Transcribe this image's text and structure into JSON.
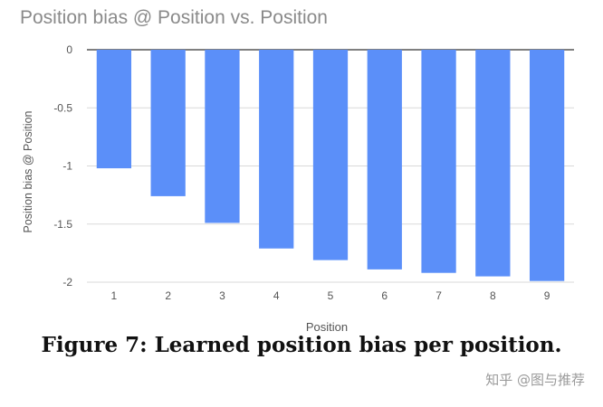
{
  "chart_data": {
    "type": "bar",
    "title": "Position bias @ Position vs. Position",
    "xlabel": "Position",
    "ylabel": "Position bias @ Position",
    "categories": [
      "1",
      "2",
      "3",
      "4",
      "5",
      "6",
      "7",
      "8",
      "9"
    ],
    "values": [
      -1.02,
      -1.26,
      -1.49,
      -1.71,
      -1.81,
      -1.89,
      -1.92,
      -1.95,
      -1.99
    ],
    "ylim": [
      -2,
      0
    ],
    "yticks": [
      "0",
      "-0.5",
      "-1",
      "-1.5",
      "-2"
    ],
    "grid": true,
    "bar_color": "#5b8ff9"
  },
  "caption": "Figure 7: Learned position bias per position.",
  "watermark": "知乎 @图与推荐"
}
